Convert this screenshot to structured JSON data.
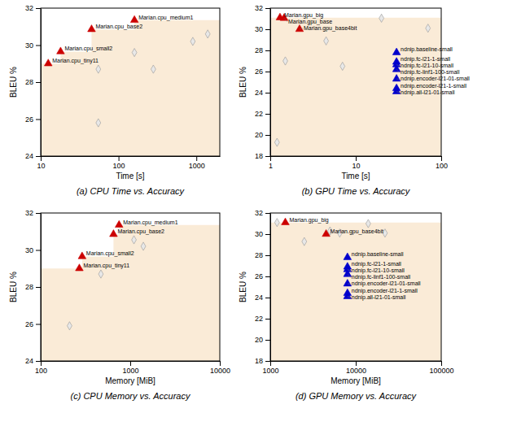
{
  "chart_data": [
    {
      "type": "scatter",
      "title": "(a) CPU Time vs. Accuracy",
      "xlabel": "Time [s]",
      "ylabel": "BLEU %",
      "log": "x",
      "grid": false,
      "xlim": [
        10.0,
        2000.0
      ],
      "ylim": [
        24.0,
        32.0
      ],
      "xticks": [
        10,
        100,
        1000
      ],
      "yticks": [
        24,
        26,
        28,
        30,
        32
      ],
      "series": [
        {
          "type": "area",
          "line_style": "step",
          "color": "#faebd7",
          "x": [
            10.0,
            12.5,
            18.0,
            45.0,
            160.0,
            2000.0
          ],
          "values": [
            29.0,
            29.0,
            29.65,
            30.85,
            31.35,
            31.35
          ]
        },
        {
          "type": "scatter",
          "marker": "diamond",
          "color": "#e8e8e8",
          "x": [
            55.0,
            55.0,
            160.0,
            280.0,
            900.0,
            1400.0
          ],
          "values": [
            25.8,
            28.7,
            29.6,
            28.7,
            30.2,
            30.6
          ]
        },
        {
          "type": "scatter",
          "marker": "triangle",
          "color": "#cc0000",
          "x": [
            12.5,
            18.0,
            45.0,
            160.0
          ],
          "values": [
            29.0,
            29.65,
            30.85,
            31.35
          ],
          "labels": [
            "Marian.cpu_tiny11",
            "Marian.cpu_small2",
            "Marian.cpu_base2",
            "Marian.cpu_medium1"
          ]
        }
      ]
    },
    {
      "type": "scatter",
      "title": "(b) GPU Time vs. Accuracy",
      "xlabel": "Time [s]",
      "ylabel": "BLEU %",
      "log": "x",
      "grid": false,
      "xlim": [
        1.0,
        100.0
      ],
      "ylim": [
        18.0,
        32.0
      ],
      "xticks": [
        1,
        10,
        100
      ],
      "yticks": [
        18,
        20,
        22,
        24,
        26,
        28,
        30,
        32
      ],
      "series": [
        {
          "type": "area",
          "line_style": "step",
          "color": "#faebd7",
          "x": [
            1.0,
            1.3,
            2.2,
            100.0
          ],
          "values": [
            31.1,
            31.1,
            31.1,
            31.1
          ]
        },
        {
          "type": "scatter",
          "marker": "diamond",
          "color": "#e8e8e8",
          "x": [
            1.2,
            1.5,
            4.5,
            7.0,
            20.0,
            70.0
          ],
          "values": [
            19.3,
            27.0,
            28.9,
            26.5,
            31.05,
            30.1
          ]
        },
        {
          "type": "scatter",
          "marker": "triangle",
          "color": "#cc0000",
          "x": [
            1.3,
            1.45,
            2.2
          ],
          "values": [
            31.1,
            31.05,
            30.0
          ],
          "labels": [
            "Marian.gpu_big",
            "Marian.gpu_base",
            "Marian.gpu_base4bit"
          ]
        },
        {
          "type": "scatter",
          "marker": "triangle",
          "color": "#0000cc",
          "x": [
            30.0,
            30.0,
            30.0,
            30.0,
            30.0,
            30.0,
            30.0
          ],
          "values": [
            27.8,
            26.9,
            26.65,
            26.2,
            25.3,
            24.4,
            24.1
          ],
          "labels": [
            "ndnip.baseline-small",
            "ndnip.fc-l21-1-small",
            "ndnip.fc-l21-10-small",
            "ndnip.fc-linf1-100-small",
            "ndnip.encoder-l21-01-small",
            "ndnip.encoder-l21-1-small",
            "ndnip.all-l21-01-small"
          ]
        }
      ]
    },
    {
      "type": "scatter",
      "title": "(c) CPU Memory vs. Accuracy",
      "xlabel": "Memory [MiB]",
      "ylabel": "BLEU %",
      "log": "x",
      "grid": false,
      "xlim": [
        100.0,
        10000.0
      ],
      "ylim": [
        24.0,
        32.0
      ],
      "xticks": [
        100,
        1000,
        10000
      ],
      "yticks": [
        24,
        26,
        28,
        30,
        32
      ],
      "series": [
        {
          "type": "area",
          "line_style": "step",
          "color": "#faebd7",
          "x": [
            100.0,
            270.0,
            290.0,
            650.0,
            750.0,
            10000.0
          ],
          "values": [
            29.0,
            29.0,
            29.65,
            30.85,
            31.35,
            31.35
          ]
        },
        {
          "type": "scatter",
          "marker": "diamond",
          "color": "#e8e8e8",
          "x": [
            210.0,
            470.0,
            1100.0,
            1400.0
          ],
          "values": [
            25.9,
            28.7,
            30.55,
            30.2
          ]
        },
        {
          "type": "scatter",
          "marker": "triangle",
          "color": "#cc0000",
          "x": [
            270.0,
            290.0,
            650.0,
            750.0
          ],
          "values": [
            29.0,
            29.65,
            30.85,
            31.35
          ],
          "labels": [
            "Marian.cpu_tiny11",
            "Marian.cpu_small2",
            "Marian.cpu_base2",
            "Marian.cpu_medium1"
          ]
        }
      ]
    },
    {
      "type": "scatter",
      "title": "(d) GPU Memory vs. Accuracy",
      "xlabel": "Memory [MiB]",
      "ylabel": "BLEU %",
      "log": "x",
      "grid": false,
      "xlim": [
        1000.0,
        100000.0
      ],
      "ylim": [
        18.0,
        32.0
      ],
      "xticks": [
        1000,
        10000,
        100000
      ],
      "yticks": [
        18,
        20,
        22,
        24,
        26,
        28,
        30,
        32
      ],
      "series": [
        {
          "type": "area",
          "line_style": "step",
          "color": "#faebd7",
          "x": [
            1000.0,
            1200.0,
            1500.0,
            100000.0
          ],
          "values": [
            31.1,
            31.1,
            31.1,
            31.1
          ]
        },
        {
          "type": "scatter",
          "marker": "diamond",
          "color": "#e8e8e8",
          "x": [
            1200.0,
            2500.0,
            5000.0,
            6500.0,
            14000.0,
            22000.0
          ],
          "values": [
            31.1,
            29.3,
            30.3,
            30.1,
            31.0,
            30.1
          ]
        },
        {
          "type": "scatter",
          "marker": "triangle",
          "color": "#cc0000",
          "x": [
            1500.0,
            4500.0
          ],
          "values": [
            31.1,
            30.0
          ],
          "labels": [
            "Marian.gpu_big",
            "Marian.gpu_base4bit"
          ]
        },
        {
          "type": "scatter",
          "marker": "triangle",
          "color": "#0000cc",
          "x": [
            8000.0,
            8000.0,
            8000.0,
            8000.0,
            8000.0,
            8000.0,
            8000.0
          ],
          "values": [
            27.8,
            26.9,
            26.65,
            26.2,
            25.3,
            24.4,
            24.1
          ],
          "labels": [
            "ndnip.baseline-small",
            "ndnip.fc-l21-1-small",
            "ndnip.fc-l21-10-small",
            "ndnip.fc-linf1-100-small",
            "ndnip.encoder-l21-01-small",
            "ndnip.encoder-l21-1-small",
            "ndnip.all-l21-01-small"
          ]
        }
      ]
    }
  ]
}
